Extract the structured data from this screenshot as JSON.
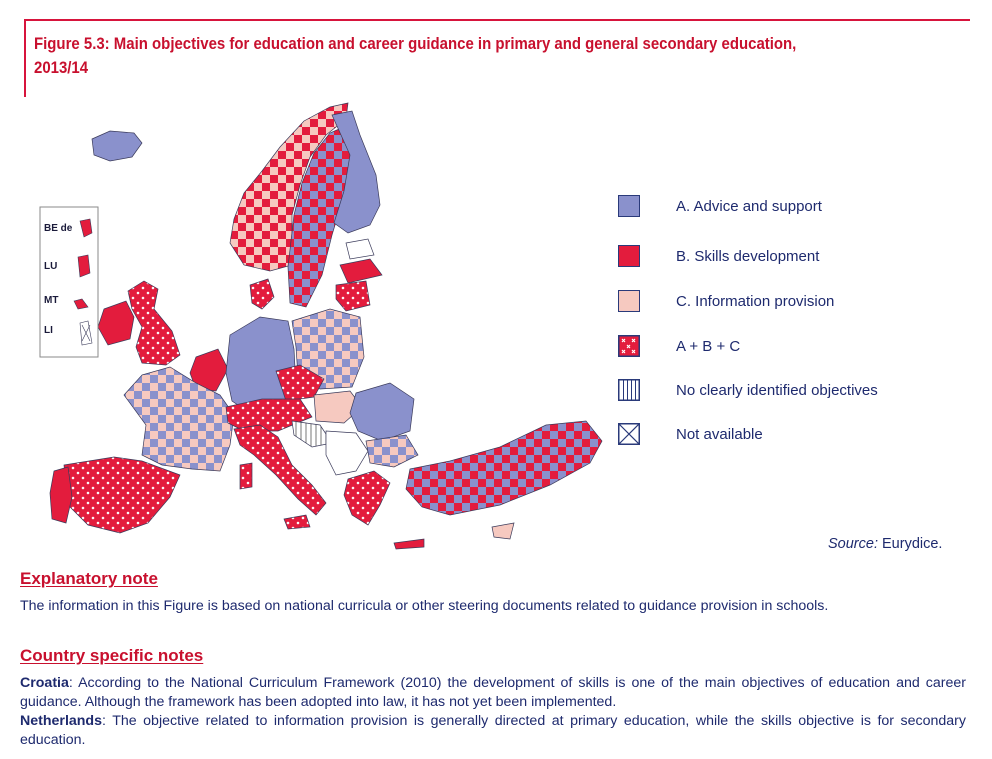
{
  "figure": {
    "title_line1": "Figure 5.3: Main objectives for education and career guidance in primary and general secondary education,",
    "title_line2": "2013/14"
  },
  "inset": {
    "labels": [
      "BE de",
      "LU",
      "MT",
      "LI"
    ]
  },
  "legend": [
    {
      "label": "A. Advice and support",
      "pattern": "advice"
    },
    {
      "label": "B. Skills development",
      "pattern": "skills"
    },
    {
      "label": "C. Information provision",
      "pattern": "info"
    },
    {
      "label": "A + B + C",
      "pattern": "abc"
    },
    {
      "label": "No clearly identified objectives",
      "pattern": "none"
    },
    {
      "label": "Not available",
      "pattern": "na"
    }
  ],
  "colors": {
    "advice": "#8a91cc",
    "skills": "#e31c3d",
    "info": "#f6c9c0",
    "border": "#2a3a7a",
    "title": "#c8102e"
  },
  "source": {
    "label": "Source:",
    "value": " Eurydice."
  },
  "explanatory": {
    "heading": "Explanatory note",
    "text": "The information in this Figure is based on national curricula or other steering documents related to guidance provision in schools."
  },
  "country_notes": {
    "heading": "Country specific notes",
    "croatia_name": "Croatia",
    "croatia_text": ": According to the National Curriculum Framework (2010) the development of skills is one of the main objectives of education and career guidance. Although the framework has been adopted into law, it has not yet been implemented.",
    "netherlands_name": "Netherlands",
    "netherlands_text": ": The objective related to information provision is generally directed at primary education, while the skills objective is for secondary education."
  }
}
